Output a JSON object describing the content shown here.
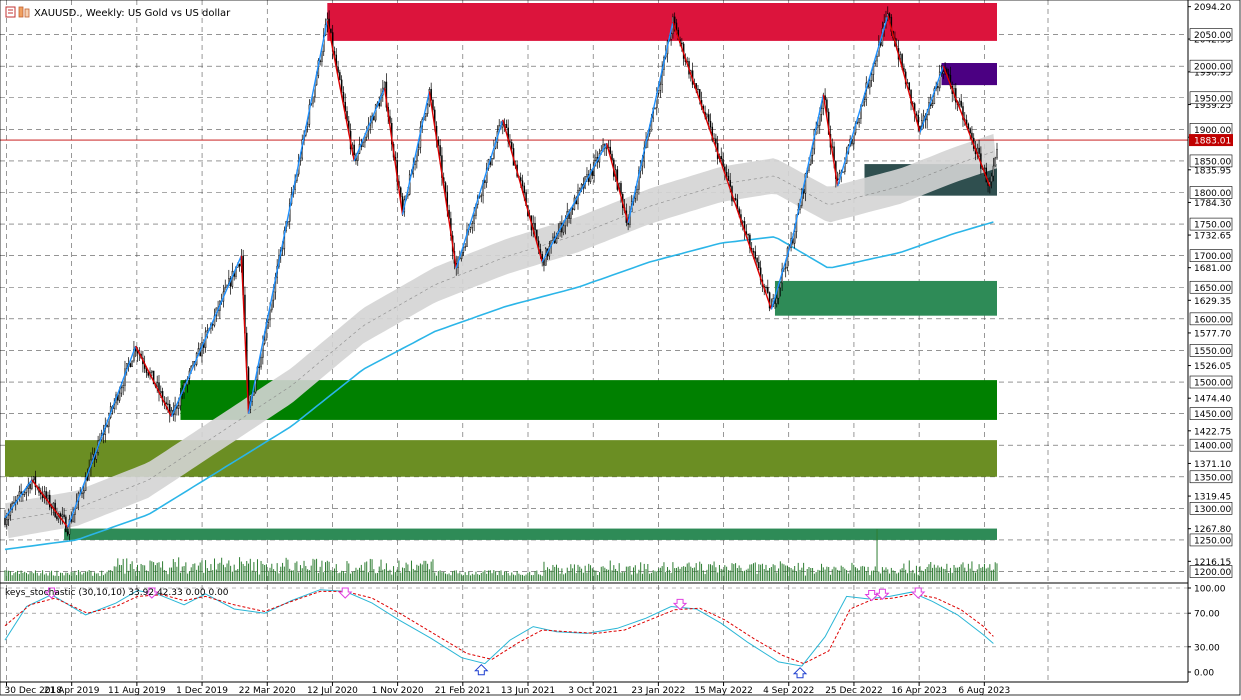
{
  "header": {
    "title": "XAUUSD., Weekly:  US Gold vs US dollar",
    "indicator_label": "keys_stochastic (30,10,10) 33.92 42.33 0.00 0.00"
  },
  "colors": {
    "bull_body": "#ffffff",
    "bear_body": "#000000",
    "candle_outline": "#000000",
    "zigzag_up": "#1e90ff",
    "zigzag_down": "#dd0000",
    "ma_line": "#2bb5e8",
    "envelope": "#d4d4d4",
    "current_line": "#c00000",
    "volume": "#2e7d32",
    "stoch_main": "#29b6d6",
    "stoch_signal": "#dd0000",
    "arrow_down": "#e040e0",
    "arrow_up": "#1e3fd0"
  },
  "chart_data": [
    {
      "type": "candlestick",
      "title": "XAUUSD., Weekly:  US Gold vs US dollar",
      "ylim": [
        1185,
        2100
      ],
      "y_ticks": [
        2094.2,
        2042.95,
        1990.95,
        1939.25,
        1887.55,
        1835.95,
        1784.3,
        1732.65,
        1681.0,
        1629.35,
        1577.7,
        1526.05,
        1474.4,
        1422.75,
        1371.1,
        1319.45,
        1267.8,
        1216.15
      ],
      "price_levels": [
        2050,
        2000,
        1950,
        1900,
        1850,
        1800,
        1750,
        1700,
        1650,
        1600,
        1550,
        1500,
        1450,
        1400,
        1350,
        1300,
        1250,
        1200
      ],
      "current_price": 1883.01,
      "x_labels": [
        "30 Dec 2018",
        "21 Apr 2019",
        "11 Aug 2019",
        "1 Dec 2019",
        "22 Mar 2020",
        "12 Jul 2020",
        "1 Nov 2020",
        "21 Feb 2021",
        "13 Jun 2021",
        "3 Oct 2021",
        "23 Jan 2022",
        "15 May 2022",
        "4 Sep 2022",
        "25 Dec 2022",
        "16 Apr 2023",
        "6 Aug 2023"
      ],
      "zigzag": [
        {
          "week": 0,
          "price": 1285
        },
        {
          "week": 15,
          "price": 1345
        },
        {
          "week": 35,
          "price": 1270
        },
        {
          "week": 73,
          "price": 1557
        },
        {
          "week": 93,
          "price": 1445
        },
        {
          "week": 132,
          "price": 1700
        },
        {
          "week": 136,
          "price": 1450
        },
        {
          "week": 180,
          "price": 2072
        },
        {
          "week": 195,
          "price": 1850
        },
        {
          "week": 212,
          "price": 1965
        },
        {
          "week": 222,
          "price": 1765
        },
        {
          "week": 237,
          "price": 1960
        },
        {
          "week": 252,
          "price": 1680
        },
        {
          "week": 278,
          "price": 1915
        },
        {
          "week": 300,
          "price": 1690
        },
        {
          "week": 336,
          "price": 1878
        },
        {
          "week": 348,
          "price": 1752
        },
        {
          "week": 373,
          "price": 2070
        },
        {
          "week": 428,
          "price": 1615
        },
        {
          "week": 440,
          "price": 1730
        },
        {
          "week": 457,
          "price": 1955
        },
        {
          "week": 465,
          "price": 1810
        },
        {
          "week": 493,
          "price": 2080
        },
        {
          "week": 511,
          "price": 1895
        },
        {
          "week": 524,
          "price": 2000
        },
        {
          "week": 550,
          "price": 1810
        }
      ],
      "zones": [
        {
          "price_from": 2040,
          "price_to": 2100,
          "color": "#dc143c",
          "week_from": 180
        },
        {
          "price_from": 1970,
          "price_to": 2005,
          "color": "#4b0082",
          "week_from": 523
        },
        {
          "price_from": 1795,
          "price_to": 1845,
          "color": "#2f4f4f",
          "week_from": 480
        },
        {
          "price_from": 1605,
          "price_to": 1660,
          "color": "#2e8b57",
          "week_from": 430
        },
        {
          "price_from": 1440,
          "price_to": 1503,
          "color": "#008000",
          "week_from": 98
        },
        {
          "price_from": 1350,
          "price_to": 1408,
          "color": "#6b8e23",
          "week_from": 0
        },
        {
          "price_from": 1250,
          "price_to": 1268,
          "color": "#2e8b57",
          "week_from": 33
        }
      ]
    },
    {
      "type": "line",
      "title": "keys_stochastic (30,10,10) 33.92 42.33 0.00 0.00",
      "ylim": [
        0,
        100
      ],
      "y_ticks": [
        100.0,
        70.0,
        30.0,
        0.0
      ],
      "y_tick_labels": [
        "100.00",
        "70.00",
        "30.00",
        "0.00"
      ],
      "series": [
        {
          "name": "main",
          "values": [
            [
              0,
              38
            ],
            [
              12,
              78
            ],
            [
              26,
              92
            ],
            [
              45,
              68
            ],
            [
              62,
              82
            ],
            [
              74,
              97
            ],
            [
              86,
              92
            ],
            [
              100,
              80
            ],
            [
              112,
              93
            ],
            [
              128,
              75
            ],
            [
              145,
              70
            ],
            [
              160,
              85
            ],
            [
              176,
              98
            ],
            [
              190,
              96
            ],
            [
              205,
              82
            ],
            [
              220,
              62
            ],
            [
              238,
              40
            ],
            [
              255,
              17
            ],
            [
              268,
              10
            ],
            [
              282,
              38
            ],
            [
              295,
              54
            ],
            [
              308,
              48
            ],
            [
              325,
              46
            ],
            [
              342,
              52
            ],
            [
              358,
              64
            ],
            [
              372,
              78
            ],
            [
              386,
              75
            ],
            [
              400,
              58
            ],
            [
              415,
              35
            ],
            [
              432,
              12
            ],
            [
              445,
              7
            ],
            [
              458,
              42
            ],
            [
              470,
              90
            ],
            [
              482,
              87
            ],
            [
              494,
              90
            ],
            [
              506,
              95
            ],
            [
              518,
              84
            ],
            [
              532,
              68
            ],
            [
              546,
              45
            ],
            [
              552,
              33.92
            ]
          ]
        },
        {
          "name": "signal",
          "values": [
            [
              0,
              55
            ],
            [
              14,
              80
            ],
            [
              28,
              88
            ],
            [
              46,
              70
            ],
            [
              62,
              78
            ],
            [
              74,
              90
            ],
            [
              88,
              92
            ],
            [
              100,
              85
            ],
            [
              112,
              90
            ],
            [
              128,
              80
            ],
            [
              145,
              72
            ],
            [
              160,
              84
            ],
            [
              176,
              96
            ],
            [
              190,
              96
            ],
            [
              205,
              88
            ],
            [
              222,
              68
            ],
            [
              240,
              45
            ],
            [
              258,
              22
            ],
            [
              272,
              15
            ],
            [
              286,
              34
            ],
            [
              300,
              50
            ],
            [
              314,
              48
            ],
            [
              330,
              46
            ],
            [
              346,
              50
            ],
            [
              360,
              62
            ],
            [
              374,
              74
            ],
            [
              388,
              76
            ],
            [
              402,
              62
            ],
            [
              418,
              40
            ],
            [
              434,
              20
            ],
            [
              446,
              10
            ],
            [
              460,
              25
            ],
            [
              472,
              75
            ],
            [
              484,
              86
            ],
            [
              496,
              88
            ],
            [
              508,
              93
            ],
            [
              520,
              88
            ],
            [
              534,
              74
            ],
            [
              546,
              55
            ],
            [
              552,
              42.33
            ]
          ]
        }
      ],
      "down_arrow_weeks": [
        26,
        82,
        190,
        377,
        484,
        490,
        510
      ],
      "up_arrow_weeks": [
        266,
        444
      ]
    }
  ]
}
